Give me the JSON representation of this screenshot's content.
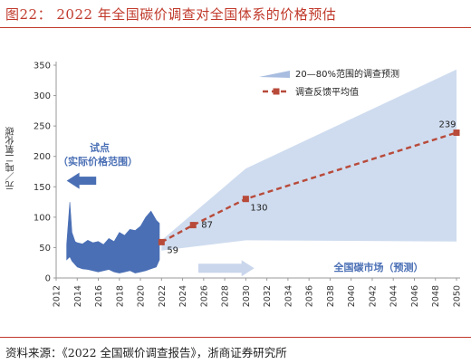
{
  "header": {
    "title": "图22： 2022 年全国碳价调查对全国体系的价格预估"
  },
  "footer": {
    "source": "资料来源：《2022 全国碳价调查报告》，浙商证券研究所"
  },
  "chart_data": {
    "type": "area",
    "ylabel": "元／吨二氧化碳",
    "ylim": [
      0,
      350
    ],
    "yticks": [
      0,
      50,
      100,
      150,
      200,
      250,
      300,
      350
    ],
    "xlim": [
      2012,
      2050
    ],
    "xticks": [
      2012,
      2014,
      2016,
      2018,
      2020,
      2022,
      2024,
      2026,
      2028,
      2030,
      2032,
      2034,
      2036,
      2038,
      2040,
      2042,
      2044,
      2046,
      2048,
      2050
    ],
    "grid": false,
    "legend_position": "top-right",
    "colors": {
      "range_band": "#cfdcef",
      "forecast_line": "#b84a3a",
      "pilot_series": "#4a6fb5",
      "arrow": "#4a6fb5"
    },
    "series": [
      {
        "name": "20—80%范围的调查预测",
        "kind": "band",
        "x": [
          2022,
          2030,
          2050
        ],
        "lower": [
          45,
          62,
          60
        ],
        "upper": [
          62,
          180,
          343
        ]
      },
      {
        "name": "调查反馈平均值",
        "kind": "dashed-line",
        "x": [
          2022,
          2025,
          2030,
          2050
        ],
        "y": [
          59,
          87,
          130,
          239
        ],
        "labels": [
          "59",
          "87",
          "130",
          "239"
        ]
      },
      {
        "name": "试点",
        "kind": "historical-band",
        "x": [
          2013,
          2013.3,
          2013.5,
          2013.8,
          2014,
          2014.5,
          2015,
          2015.5,
          2016,
          2016.5,
          2017,
          2017.5,
          2018,
          2018.5,
          2019,
          2019.5,
          2020,
          2020.5,
          2021,
          2021.5,
          2021.8
        ],
        "upper": [
          55,
          125,
          75,
          60,
          58,
          56,
          62,
          58,
          60,
          55,
          65,
          60,
          75,
          70,
          80,
          78,
          85,
          100,
          110,
          95,
          90
        ],
        "lower": [
          30,
          35,
          28,
          22,
          18,
          15,
          14,
          12,
          10,
          12,
          14,
          10,
          8,
          10,
          12,
          8,
          10,
          12,
          15,
          18,
          30
        ]
      }
    ],
    "annotations": {
      "pilot": "试点",
      "pilot_sub": "（实际价格范围）",
      "market": "全国碳市场（预测）"
    }
  }
}
